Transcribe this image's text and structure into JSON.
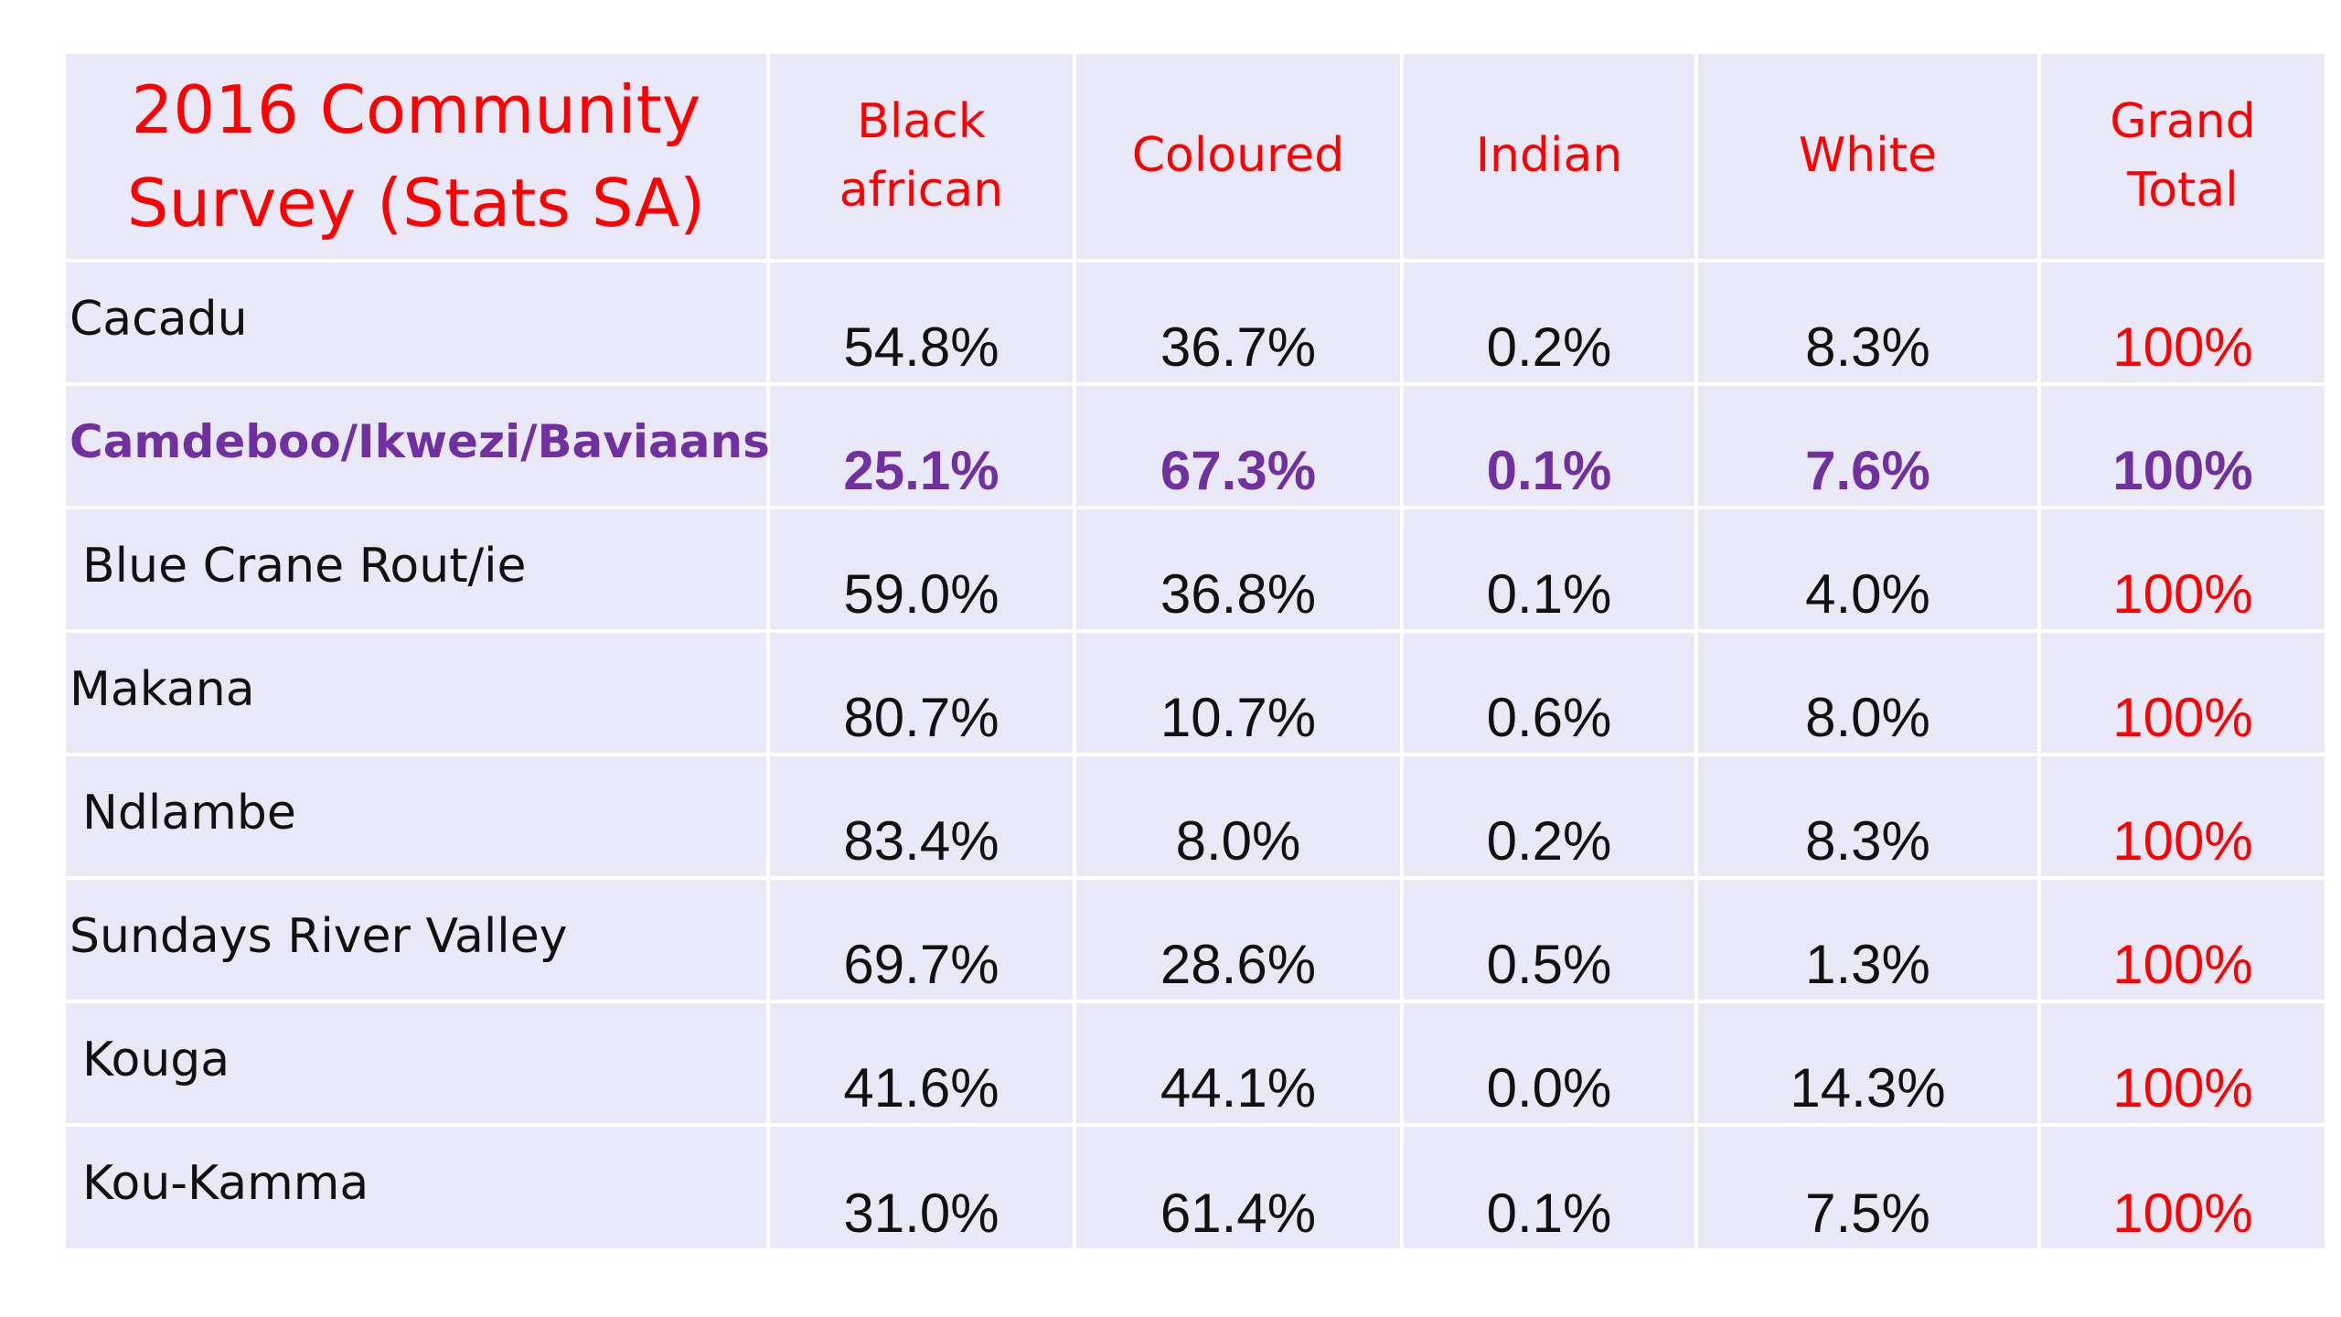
{
  "table": {
    "title_line1": "2016 Community",
    "title_line2": "Survey  (Stats SA)",
    "headers": [
      {
        "line1": "Black",
        "line2": "african"
      },
      {
        "line1": "Coloured",
        "line2": ""
      },
      {
        "line1": "Indian",
        "line2": ""
      },
      {
        "line1": "White",
        "line2": ""
      },
      {
        "line1": "Grand",
        "line2": "Total"
      }
    ],
    "rows": [
      {
        "region": "Cacadu",
        "black_african": "54.8%",
        "coloured": "36.7%",
        "indian": "0.2%",
        "white": "8.3%",
        "grand_total": "100%"
      },
      {
        "region": "Camdeboo/Ikwezi/Baviaans",
        "black_african": "25.1%",
        "coloured": "67.3%",
        "indian": "0.1%",
        "white": "7.6%",
        "grand_total": "100%"
      },
      {
        "region": "Blue Crane Rout/ie",
        "black_african": "59.0%",
        "coloured": "36.8%",
        "indian": "0.1%",
        "white": "4.0%",
        "grand_total": "100%"
      },
      {
        "region": "Makana",
        "black_african": "80.7%",
        "coloured": "10.7%",
        "indian": "0.6%",
        "white": "8.0%",
        "grand_total": "100%"
      },
      {
        "region": "Ndlambe",
        "black_african": "83.4%",
        "coloured": "8.0%",
        "indian": "0.2%",
        "white": "8.3%",
        "grand_total": "100%"
      },
      {
        "region": "Sundays River Valley",
        "black_african": "69.7%",
        "coloured": "28.6%",
        "indian": "0.5%",
        "white": "1.3%",
        "grand_total": "100%"
      },
      {
        "region": "Kouga",
        "black_african": "41.6%",
        "coloured": "44.1%",
        "indian": "0.0%",
        "white": "14.3%",
        "grand_total": "100%"
      },
      {
        "region": "Kou-Kamma",
        "black_african": "31.0%",
        "coloured": "61.4%",
        "indian": "0.1%",
        "white": "7.5%",
        "grand_total": "100%"
      }
    ]
  },
  "colors": {
    "header_text": "#ff0000",
    "grand_total_text": "#ff0000",
    "highlight_row_text": "#7030a0",
    "table_background": "#e8e8f6"
  }
}
